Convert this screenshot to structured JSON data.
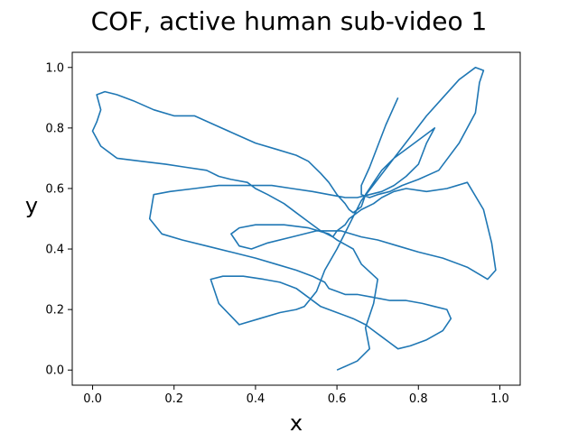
{
  "chart_data": {
    "type": "line",
    "title": "COF, active human sub-video 1",
    "xlabel": "x",
    "ylabel": "y",
    "xlim": [
      -0.05,
      1.05
    ],
    "ylim": [
      -0.05,
      1.05
    ],
    "xticks": [
      "0.0",
      "0.2",
      "0.4",
      "0.6",
      "0.8",
      "1.0"
    ],
    "yticks": [
      "0.0",
      "0.2",
      "0.4",
      "0.6",
      "0.8",
      "1.0"
    ],
    "grid": false,
    "legend": "none",
    "series": [
      {
        "color": "#1f77b4",
        "x": [
          0.6,
          0.65,
          0.68,
          0.67,
          0.69,
          0.7,
          0.66,
          0.64,
          0.6,
          0.58,
          0.53,
          0.47,
          0.4,
          0.36,
          0.34,
          0.35,
          0.36,
          0.39,
          0.43,
          0.49,
          0.55,
          0.61,
          0.66,
          0.7,
          0.75,
          0.8,
          0.86,
          0.92,
          0.97,
          0.99,
          0.98,
          0.96,
          0.92,
          0.87,
          0.82,
          0.77,
          0.74,
          0.71,
          0.69,
          0.66,
          0.64,
          0.63,
          0.62,
          0.6,
          0.59,
          0.56,
          0.53,
          0.5,
          0.47,
          0.43,
          0.4,
          0.38,
          0.34,
          0.31,
          0.28,
          0.23,
          0.18,
          0.12,
          0.06,
          0.02,
          0.0,
          0.01,
          0.02,
          0.01,
          0.03,
          0.06,
          0.1,
          0.15,
          0.2,
          0.25,
          0.3,
          0.35,
          0.4,
          0.45,
          0.5,
          0.53,
          0.56,
          0.58,
          0.6,
          0.62,
          0.63,
          0.64,
          0.66,
          0.67,
          0.69,
          0.71,
          0.74,
          0.78,
          0.82,
          0.84,
          0.82,
          0.8,
          0.77,
          0.74,
          0.71,
          0.68,
          0.65,
          0.62,
          0.58,
          0.54,
          0.49,
          0.44,
          0.38,
          0.31,
          0.25,
          0.19,
          0.15,
          0.14,
          0.17,
          0.22,
          0.28,
          0.34,
          0.4,
          0.45,
          0.5,
          0.54,
          0.57,
          0.58,
          0.6,
          0.62,
          0.65,
          0.69,
          0.73,
          0.77,
          0.81,
          0.84,
          0.87,
          0.88,
          0.86,
          0.82,
          0.78,
          0.75,
          0.73,
          0.71,
          0.69,
          0.67,
          0.64,
          0.6,
          0.56,
          0.53,
          0.5,
          0.46,
          0.42,
          0.37,
          0.32,
          0.29,
          0.31,
          0.36,
          0.41,
          0.46,
          0.5,
          0.52,
          0.55,
          0.57,
          0.6,
          0.63,
          0.66,
          0.7,
          0.74,
          0.78,
          0.82,
          0.86,
          0.9,
          0.94,
          0.96,
          0.95,
          0.94,
          0.9,
          0.85,
          0.8,
          0.76,
          0.73,
          0.7,
          0.68,
          0.66,
          0.66,
          0.68,
          0.7,
          0.72,
          0.75
        ],
        "y": [
          0.0,
          0.03,
          0.07,
          0.14,
          0.22,
          0.3,
          0.35,
          0.4,
          0.43,
          0.45,
          0.47,
          0.48,
          0.48,
          0.47,
          0.45,
          0.43,
          0.41,
          0.4,
          0.42,
          0.44,
          0.46,
          0.46,
          0.44,
          0.43,
          0.41,
          0.39,
          0.37,
          0.34,
          0.3,
          0.33,
          0.42,
          0.53,
          0.62,
          0.6,
          0.59,
          0.6,
          0.59,
          0.57,
          0.55,
          0.53,
          0.51,
          0.5,
          0.48,
          0.46,
          0.44,
          0.46,
          0.49,
          0.52,
          0.55,
          0.58,
          0.6,
          0.62,
          0.63,
          0.64,
          0.66,
          0.67,
          0.68,
          0.69,
          0.7,
          0.74,
          0.79,
          0.82,
          0.86,
          0.91,
          0.92,
          0.91,
          0.89,
          0.86,
          0.84,
          0.84,
          0.81,
          0.78,
          0.75,
          0.73,
          0.71,
          0.69,
          0.65,
          0.62,
          0.58,
          0.55,
          0.53,
          0.52,
          0.54,
          0.58,
          0.62,
          0.66,
          0.7,
          0.74,
          0.78,
          0.8,
          0.75,
          0.68,
          0.64,
          0.61,
          0.59,
          0.58,
          0.57,
          0.57,
          0.58,
          0.59,
          0.6,
          0.61,
          0.61,
          0.61,
          0.6,
          0.59,
          0.58,
          0.5,
          0.45,
          0.43,
          0.41,
          0.39,
          0.37,
          0.35,
          0.33,
          0.31,
          0.29,
          0.27,
          0.26,
          0.25,
          0.25,
          0.24,
          0.23,
          0.23,
          0.22,
          0.21,
          0.2,
          0.17,
          0.13,
          0.1,
          0.08,
          0.07,
          0.09,
          0.11,
          0.13,
          0.15,
          0.17,
          0.19,
          0.21,
          0.24,
          0.27,
          0.29,
          0.3,
          0.31,
          0.31,
          0.3,
          0.22,
          0.15,
          0.17,
          0.19,
          0.2,
          0.21,
          0.26,
          0.33,
          0.4,
          0.48,
          0.56,
          0.63,
          0.7,
          0.77,
          0.84,
          0.9,
          0.96,
          1.0,
          0.99,
          0.95,
          0.85,
          0.75,
          0.66,
          0.63,
          0.61,
          0.59,
          0.58,
          0.57,
          0.58,
          0.61,
          0.67,
          0.74,
          0.81,
          0.9
        ],
        "name": ""
      }
    ]
  }
}
